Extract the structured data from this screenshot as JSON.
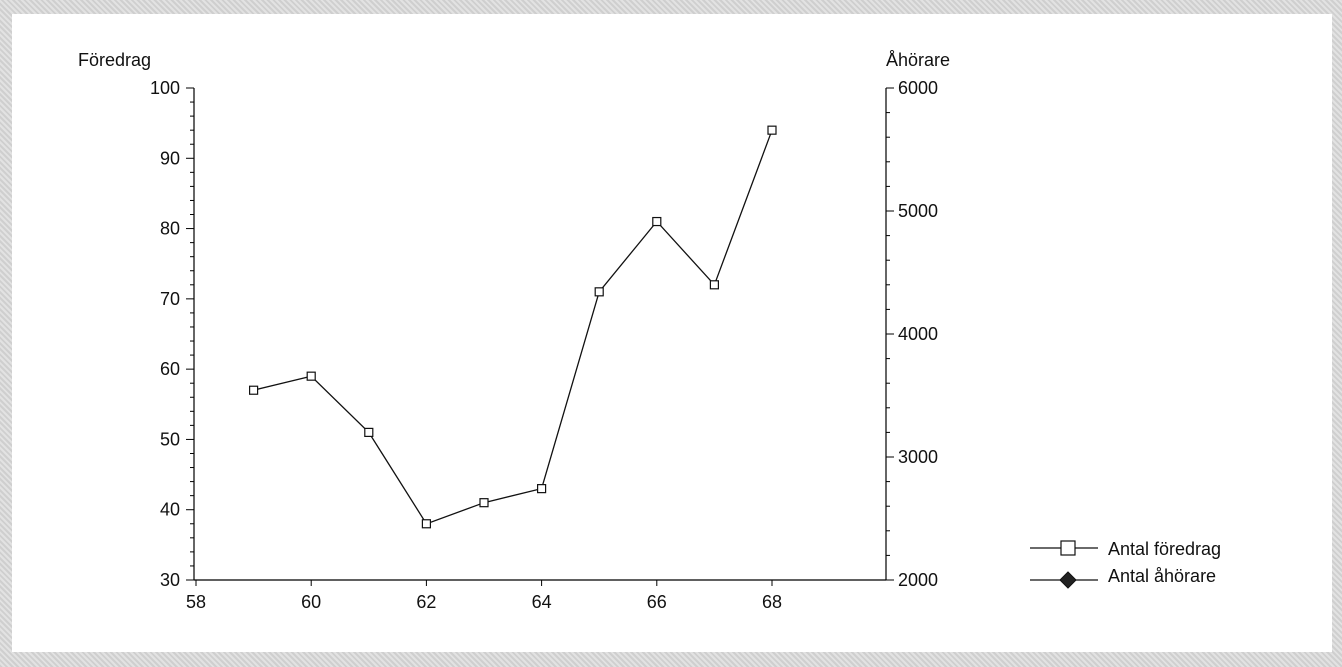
{
  "chart_data": {
    "type": "line",
    "title": "",
    "xlabel": "",
    "ylabel_left": "Föredrag",
    "ylabel_right": "Åhörare",
    "xlim": [
      58,
      70
    ],
    "ylim_left": [
      30,
      100
    ],
    "ylim_right": [
      2000,
      6000
    ],
    "x_ticks": [
      "58",
      "60",
      "62",
      "64",
      "66",
      "68"
    ],
    "y_left_ticks": [
      "30",
      "40",
      "50",
      "60",
      "70",
      "80",
      "90",
      "100"
    ],
    "y_right_ticks": [
      "2000",
      "3000",
      "4000",
      "5000",
      "6000"
    ],
    "grid": false,
    "legend_position": "bottom-right",
    "series": [
      {
        "name": "Antal föredrag",
        "axis": "left",
        "marker": "open-square",
        "x": [
          59,
          60,
          61,
          62,
          63,
          64,
          65,
          66,
          67,
          68
        ],
        "y": [
          57,
          59,
          51,
          38,
          41,
          43,
          71,
          81,
          72,
          94
        ]
      },
      {
        "name": "Antal åhörare",
        "axis": "right",
        "marker": "filled-diamond",
        "x": [],
        "y": []
      }
    ]
  }
}
